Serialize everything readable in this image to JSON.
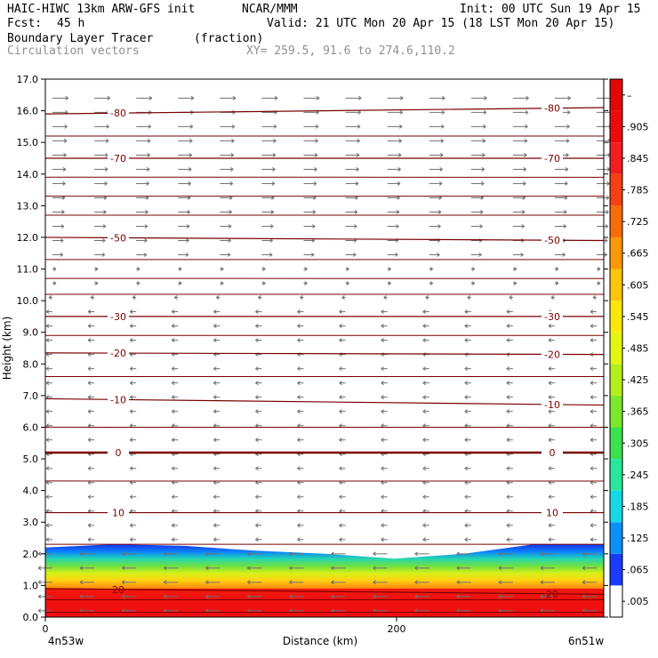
{
  "header": {
    "title_left": "HAIC-HIWC 13km ARW-GFS init",
    "org": "NCAR/MMM",
    "init": "Init: 00 UTC Sun 19 Apr 15",
    "fcst_label": "Fcst:",
    "fcst_value": "45 h",
    "valid": "Valid: 21 UTC Mon 20 Apr 15 (18 LST Mon 20 Apr 15)",
    "field_name": "Boundary Layer Tracer",
    "field_units": "(fraction)",
    "vectors_label": "Circulation vectors",
    "xy_label": "XY= 259.5, 91.6 to 274.6,110.2"
  },
  "chart_data": {
    "type": "heatmap",
    "xlabel": "Distance (km)",
    "ylabel": "Height (km)",
    "xlim": [
      0,
      318
    ],
    "ylim": [
      0,
      17
    ],
    "x_ticks": [
      "0",
      "200"
    ],
    "y_ticks": [
      "0.0",
      "1.0",
      "2.0",
      "3.0",
      "4.0",
      "5.0",
      "6.0",
      "7.0",
      "8.0",
      "9.0",
      "10.0",
      "11.0",
      "12.0",
      "13.0",
      "14.0",
      "15.0",
      "16.0",
      "17.0"
    ],
    "x_endpoint_left": "4n53w",
    "x_endpoint_right": "6n51w",
    "colorbar_labels": [
      ".005",
      ".065",
      ".125",
      ".185",
      ".245",
      ".305",
      ".365",
      ".425",
      ".485",
      ".545",
      ".605",
      ".665",
      ".725",
      ".785",
      ".845",
      ".905",
      "–"
    ],
    "colorbar_colors": [
      "#ffffff",
      "#1a3cff",
      "#0a90ff",
      "#15d9e8",
      "#28e69a",
      "#3ce150",
      "#7be82c",
      "#b4ee1c",
      "#e4f412",
      "#f8e80e",
      "#fcc40a",
      "#fb9908",
      "#f86c08",
      "#f44012",
      "#f01e1e",
      "#ea0c0c",
      "#e00808"
    ],
    "contour_color": "#7a0000",
    "temperature_contours": [
      {
        "label": "20",
        "y_left": 0.9,
        "y_right": 0.72
      },
      {
        "label": "10",
        "y_left": 3.3,
        "y_right": 3.3
      },
      {
        "label": "0",
        "y_left": 5.2,
        "y_right": 5.2
      },
      {
        "label": "-10",
        "y_left": 6.9,
        "y_right": 6.7
      },
      {
        "label": "-20",
        "y_left": 8.35,
        "y_right": 8.3
      },
      {
        "label": "-30",
        "y_left": 9.5,
        "y_right": 9.5
      },
      {
        "label": "-50",
        "y_left": 12.0,
        "y_right": 11.9
      },
      {
        "label": "-70",
        "y_left": 14.5,
        "y_right": 14.5
      },
      {
        "label": "-80",
        "y_left": 15.9,
        "y_right": 16.1
      }
    ],
    "unlabeled_contour_heights": [
      0.15,
      0.55,
      2.3,
      4.3,
      6.0,
      7.6,
      8.9,
      10.2,
      10.7,
      11.3,
      12.7,
      13.3,
      13.9,
      15.2
    ],
    "tracer_layer": {
      "top_km": [
        2.2,
        2.3,
        2.25,
        2.1,
        2.0,
        1.85,
        2.0,
        2.3,
        2.3
      ],
      "blue_thickness_km": 0.35,
      "red_top_km": 0.9
    },
    "wind_vectors": {
      "upper_direction": "east",
      "lower_direction": "west",
      "transition_km": 10.5
    }
  }
}
